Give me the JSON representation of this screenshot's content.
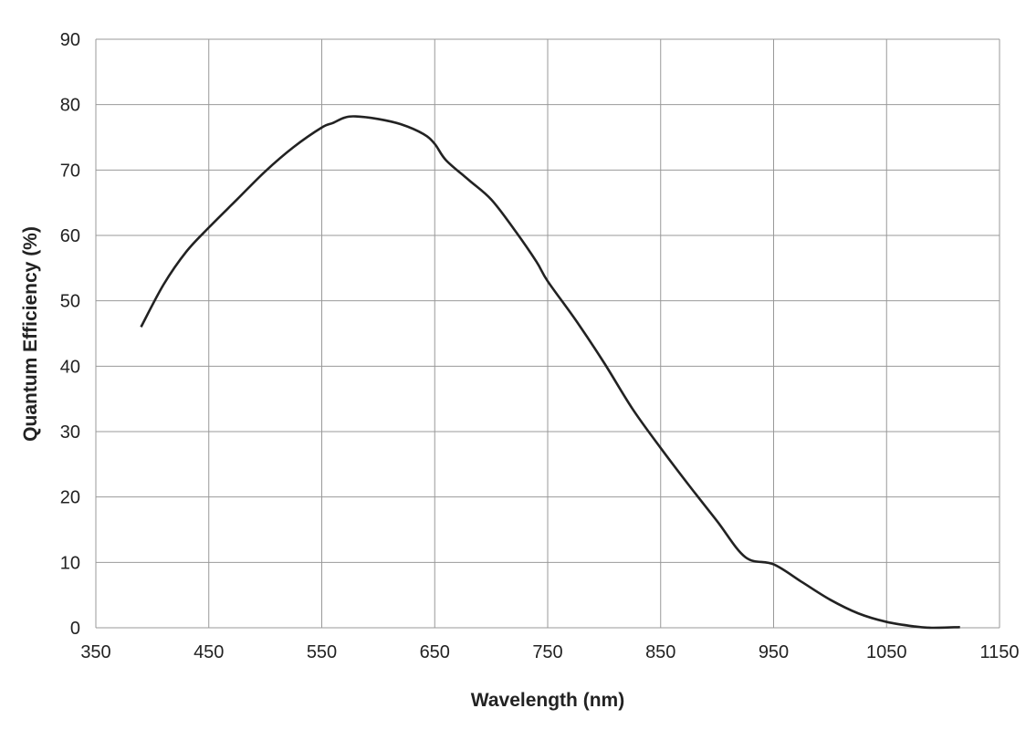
{
  "chart_data": {
    "type": "line",
    "title": "",
    "xlabel": "Wavelength (nm)",
    "ylabel": "Quantum Efficiency (%)",
    "xlim": [
      350,
      1150
    ],
    "ylim": [
      0,
      90
    ],
    "xticks": [
      "350",
      "450",
      "550",
      "650",
      "750",
      "850",
      "950",
      "1050",
      "1150"
    ],
    "yticks": [
      "0",
      "10",
      "20",
      "30",
      "40",
      "50",
      "60",
      "70",
      "80",
      "90"
    ],
    "grid": true,
    "line_color": "#222222",
    "grid_color": "#999999",
    "series": [
      {
        "x": [
          390,
          410,
          430,
          450,
          475,
          500,
          525,
          550,
          560,
          570,
          580,
          600,
          620,
          640,
          650,
          660,
          680,
          700,
          720,
          740,
          750,
          775,
          800,
          825,
          850,
          875,
          900,
          925,
          950,
          975,
          1000,
          1025,
          1050,
          1075,
          1090,
          1115
        ],
        "y": [
          46,
          52.5,
          57.5,
          61.2,
          65.5,
          69.8,
          73.5,
          76.5,
          77.2,
          78,
          78.2,
          77.8,
          77,
          75.5,
          74,
          71.5,
          68.5,
          65.5,
          61,
          56,
          53,
          47,
          40.5,
          33.5,
          27.5,
          21.8,
          16.3,
          10.8,
          9.7,
          7,
          4.3,
          2.2,
          0.9,
          0.2,
          0,
          0.1
        ]
      }
    ]
  }
}
